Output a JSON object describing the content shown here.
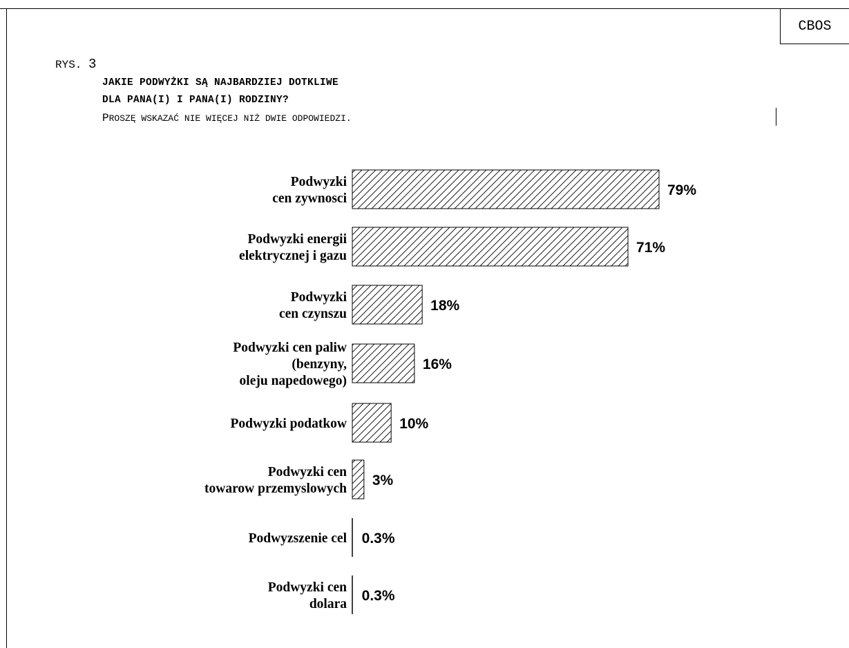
{
  "header": {
    "brand": "CBOS",
    "figure_prefix": "RYS.",
    "figure_number": "3",
    "question_line1": "JAKIE PODWYŻKI SĄ NAJBARDZIEJ DOTKLIWE",
    "question_line2": "DLA PANA(I) I PANA(I) RODZINY?",
    "instruction_first": "P",
    "instruction_rest": "ROSZĘ WSKAZAĆ NIE WIĘCEJ NIŻ DWIE ODPOWIEDZI."
  },
  "chart_data": {
    "type": "bar",
    "orientation": "horizontal",
    "title": "",
    "xlabel": "",
    "ylabel": "",
    "categories": [
      [
        "Podwyzki",
        "cen zywnosci"
      ],
      [
        "Podwyzki energii",
        "elektrycznej i gazu"
      ],
      [
        "Podwyzki",
        "cen czynszu"
      ],
      [
        "Podwyzki cen paliw",
        "(benzyny,",
        "oleju napedowego)"
      ],
      [
        "Podwyzki podatkow"
      ],
      [
        "Podwyzki cen",
        "towarow przemyslowych"
      ],
      [
        "Podwyzszenie cel"
      ],
      [
        "Podwyzki cen",
        "dolara"
      ]
    ],
    "values": [
      79,
      71,
      18,
      16,
      10,
      3,
      0.3,
      0.3
    ],
    "value_labels": [
      "79%",
      "71%",
      "18%",
      "16%",
      "10%",
      "3%",
      "0.3%",
      "0.3%"
    ],
    "unit": "%",
    "xlim": [
      0,
      79
    ],
    "fill": "hatched",
    "grid": false,
    "legend": "none"
  }
}
